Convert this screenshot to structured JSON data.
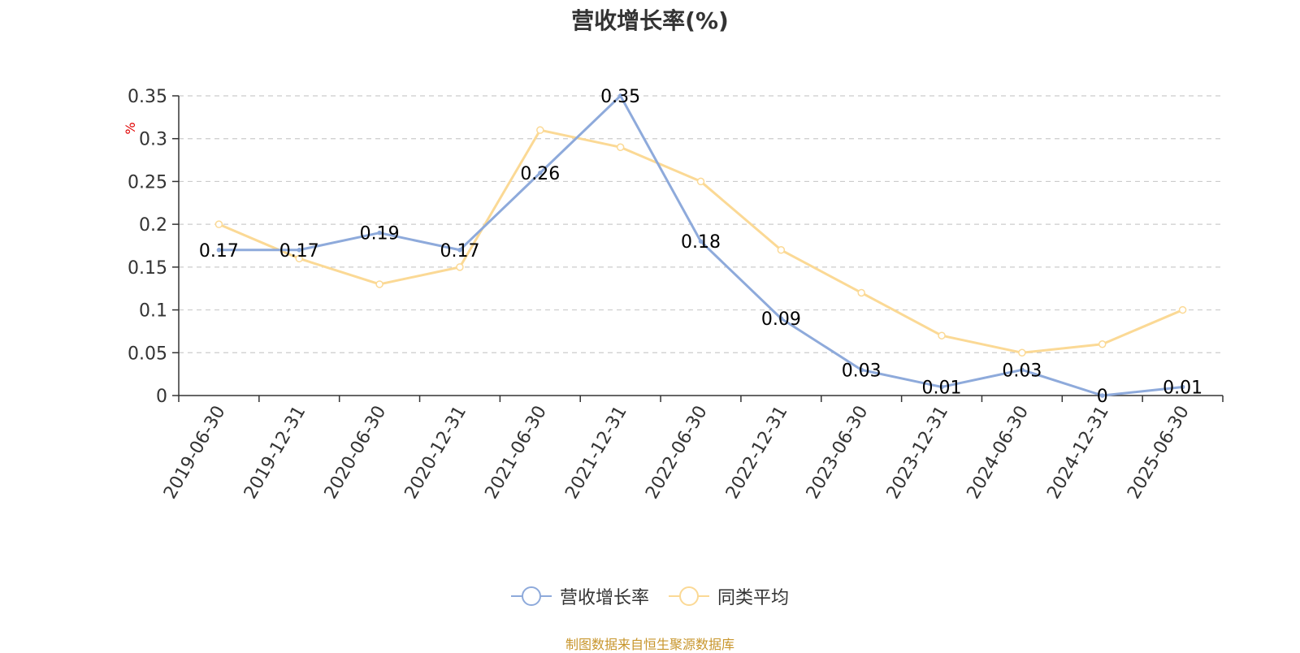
{
  "colors": {
    "series1": "#8eaadb",
    "series2": "#fbd995",
    "unit": "#e00000",
    "source": "#c8962d"
  },
  "source_text": "制图数据来自恒生聚源数据库",
  "chart_data": {
    "type": "line",
    "title": "营收增长率(%)",
    "ylabel": "%",
    "ylim": [
      0,
      0.35
    ],
    "yticks": [
      "0",
      "0.05",
      "0.1",
      "0.15",
      "0.2",
      "0.25",
      "0.3",
      "0.35"
    ],
    "grid": true,
    "legend_position": "bottom",
    "categories": [
      "2019-06-30",
      "2019-12-31",
      "2020-06-30",
      "2020-12-31",
      "2021-06-30",
      "2021-12-31",
      "2022-06-30",
      "2022-12-31",
      "2023-06-30",
      "2023-12-31",
      "2024-06-30",
      "2024-12-31",
      "2025-06-30"
    ],
    "series": [
      {
        "name": "营收增长率",
        "values": [
          0.17,
          0.17,
          0.19,
          0.17,
          0.26,
          0.35,
          0.18,
          0.09,
          0.03,
          0.01,
          0.03,
          0,
          0.01
        ],
        "labels": [
          "0.17",
          "0.17",
          "0.19",
          "0.17",
          "0.26",
          "0.35",
          "0.18",
          "0.09",
          "0.03",
          "0.01",
          "0.03",
          "0",
          "0.01"
        ]
      },
      {
        "name": "同类平均",
        "values": [
          0.2,
          0.16,
          0.13,
          0.15,
          0.31,
          0.29,
          0.25,
          0.17,
          0.12,
          0.07,
          0.05,
          0.06,
          0.1
        ]
      }
    ]
  }
}
